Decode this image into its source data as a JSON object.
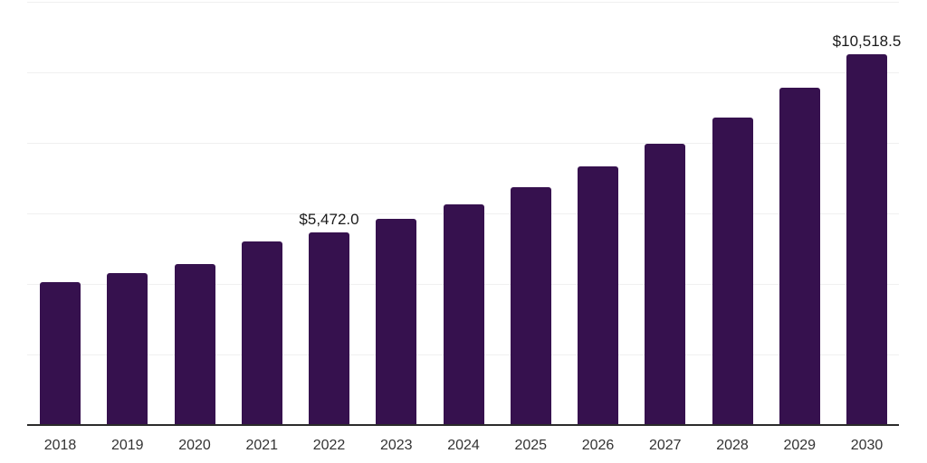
{
  "chart_data": {
    "type": "bar",
    "title": "",
    "xlabel": "",
    "ylabel": "",
    "categories": [
      "2018",
      "2019",
      "2020",
      "2021",
      "2022",
      "2023",
      "2024",
      "2025",
      "2026",
      "2027",
      "2028",
      "2029",
      "2030"
    ],
    "values": [
      4050,
      4310,
      4565,
      5205,
      5472.0,
      5845,
      6255,
      6745,
      7335,
      7975,
      8720,
      9565,
      10518.5
    ],
    "data_labels": [
      null,
      null,
      null,
      null,
      "$5,472.0",
      null,
      null,
      null,
      null,
      null,
      null,
      null,
      "$10,518.5"
    ],
    "ylim": [
      0,
      12000
    ],
    "gridline_step": 2000,
    "grid": "horizontal-only",
    "legend": "none",
    "y_axis_tick_labels": "none",
    "colors": {
      "bar": "#36114e",
      "gridline": "#f0f0f0",
      "axis_line": "#2b2b2b",
      "tick_label": "#333333",
      "data_label": "#1a1a1a",
      "background": "#ffffff"
    }
  }
}
